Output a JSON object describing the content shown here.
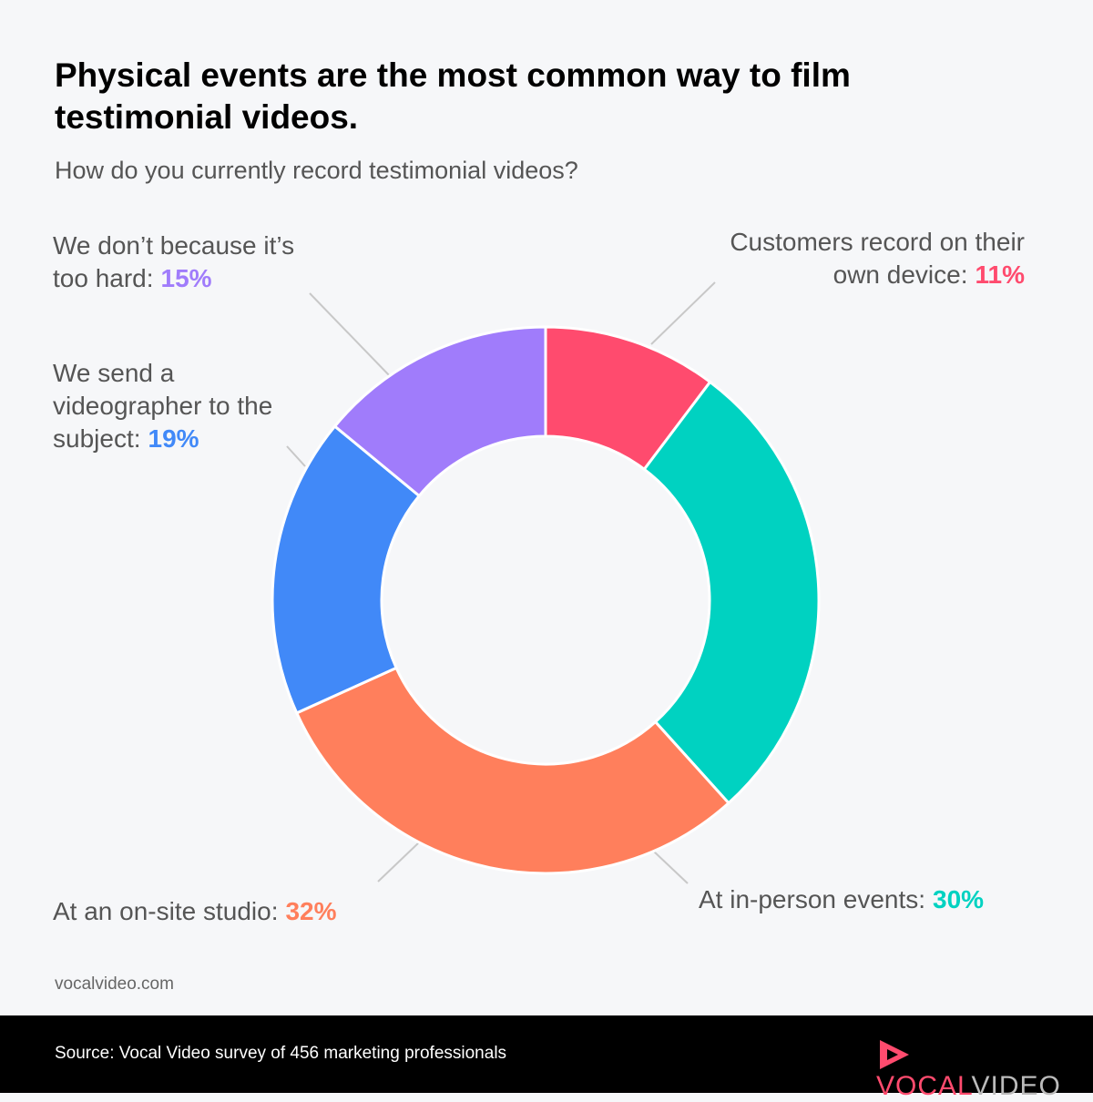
{
  "chart_data": {
    "type": "donut",
    "title": "Physical events are the most common way to film testimonial videos.",
    "subtitle": "How do you currently record testimonial videos?",
    "categories": [
      "Customers record on their own device:",
      "At in-person events:",
      "At an on-site studio:",
      "We send a videographer to the subject:",
      "We don’t because it’s too hard:"
    ],
    "values": [
      11,
      30,
      32,
      19,
      15
    ],
    "value_labels": [
      "11%",
      "30%",
      "32%",
      "19%",
      "15%"
    ],
    "colors": [
      "#ff4b6e",
      "#00d2c1",
      "#ff7f5c",
      "#4189f8",
      "#a07cfb"
    ]
  },
  "site": "vocalvideo.com",
  "source": "Source: Vocal Video survey of 456 marketing professionals",
  "brand": {
    "first": "VOCAL",
    "second": "VIDEO"
  }
}
